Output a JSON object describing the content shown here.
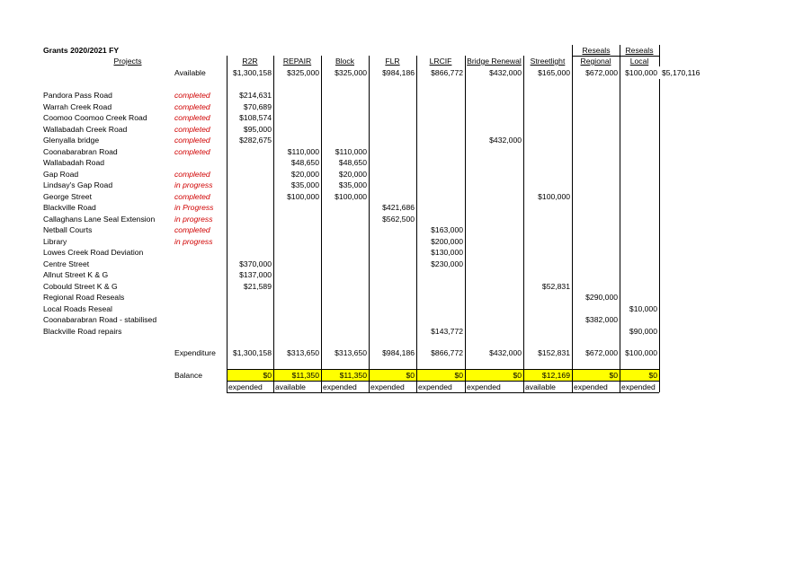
{
  "title": "Grants 2020/2021 FY",
  "headers": {
    "projects": "Projects",
    "reseals": "Reseals",
    "columns": [
      "R2R",
      "REPAIR",
      "Block",
      "FLR",
      "LRCIF",
      "Bridge Renewal",
      "Streetlight",
      "Regional",
      "Local"
    ]
  },
  "available": {
    "label": "Available",
    "values": [
      "$1,300,158",
      "$325,000",
      "$325,000",
      "$984,186",
      "$866,772",
      "$432,000",
      "$165,000",
      "$672,000",
      "$100,000"
    ],
    "total": "$5,170,116"
  },
  "projects": [
    {
      "name": "Pandora Pass Road",
      "status": "completed",
      "values": [
        "$214,631",
        "",
        "",
        "",
        "",
        "",
        "",
        "",
        ""
      ]
    },
    {
      "name": "Warrah Creek Road",
      "status": "completed",
      "values": [
        "$70,689",
        "",
        "",
        "",
        "",
        "",
        "",
        "",
        ""
      ]
    },
    {
      "name": "Coomoo Coomoo Creek Road",
      "status": "completed",
      "values": [
        "$108,574",
        "",
        "",
        "",
        "",
        "",
        "",
        "",
        ""
      ]
    },
    {
      "name": "Wallabadah Creek Road",
      "status": "completed",
      "values": [
        "$95,000",
        "",
        "",
        "",
        "",
        "",
        "",
        "",
        ""
      ]
    },
    {
      "name": "Glenyalla bridge",
      "status": "completed",
      "values": [
        "$282,675",
        "",
        "",
        "",
        "",
        "$432,000",
        "",
        "",
        ""
      ]
    },
    {
      "name": "Coonabarabran Road",
      "status": "completed",
      "values": [
        "",
        "$110,000",
        "$110,000",
        "",
        "",
        "",
        "",
        "",
        ""
      ]
    },
    {
      "name": "Wallabadah Road",
      "status": "",
      "values": [
        "",
        "$48,650",
        "$48,650",
        "",
        "",
        "",
        "",
        "",
        ""
      ]
    },
    {
      "name": "Gap Road",
      "status": "completed",
      "values": [
        "",
        "$20,000",
        "$20,000",
        "",
        "",
        "",
        "",
        "",
        ""
      ]
    },
    {
      "name": "Lindsay's Gap Road",
      "status": "in progress",
      "values": [
        "",
        "$35,000",
        "$35,000",
        "",
        "",
        "",
        "",
        "",
        ""
      ]
    },
    {
      "name": "George Street",
      "status": "completed",
      "values": [
        "",
        "$100,000",
        "$100,000",
        "",
        "",
        "",
        "$100,000",
        "",
        ""
      ]
    },
    {
      "name": "Blackville Road",
      "status": "in Progress",
      "values": [
        "",
        "",
        "",
        "$421,686",
        "",
        "",
        "",
        "",
        ""
      ]
    },
    {
      "name": "Callaghans Lane Seal Extension",
      "status": "in progress",
      "values": [
        "",
        "",
        "",
        "$562,500",
        "",
        "",
        "",
        "",
        ""
      ]
    },
    {
      "name": "Netball Courts",
      "status": "completed",
      "values": [
        "",
        "",
        "",
        "",
        "$163,000",
        "",
        "",
        "",
        ""
      ]
    },
    {
      "name": "Library",
      "status": "in progress",
      "values": [
        "",
        "",
        "",
        "",
        "$200,000",
        "",
        "",
        "",
        ""
      ]
    },
    {
      "name": "Lowes Creek Road Deviation",
      "status": "",
      "values": [
        "",
        "",
        "",
        "",
        "$130,000",
        "",
        "",
        "",
        ""
      ]
    },
    {
      "name": "Centre Street",
      "status": "",
      "values": [
        "$370,000",
        "",
        "",
        "",
        "$230,000",
        "",
        "",
        "",
        ""
      ]
    },
    {
      "name": "Allnut Street K & G",
      "status": "",
      "values": [
        "$137,000",
        "",
        "",
        "",
        "",
        "",
        "",
        "",
        ""
      ]
    },
    {
      "name": "Cobould Street K & G",
      "status": "",
      "values": [
        "$21,589",
        "",
        "",
        "",
        "",
        "",
        "$52,831",
        "",
        ""
      ]
    },
    {
      "name": "Regional Road Reseals",
      "status": "",
      "values": [
        "",
        "",
        "",
        "",
        "",
        "",
        "",
        "$290,000",
        ""
      ]
    },
    {
      "name": "Local Roads Reseal",
      "status": "",
      "values": [
        "",
        "",
        "",
        "",
        "",
        "",
        "",
        "",
        "$10,000"
      ]
    },
    {
      "name": "Coonabarabran Road - stabilised",
      "status": "",
      "values": [
        "",
        "",
        "",
        "",
        "",
        "",
        "",
        "$382,000",
        ""
      ]
    },
    {
      "name": "Blackville Road repairs",
      "status": "",
      "values": [
        "",
        "",
        "",
        "",
        "$143,772",
        "",
        "",
        "",
        "$90,000"
      ]
    }
  ],
  "expenditure": {
    "label": "Expenditure",
    "values": [
      "$1,300,158",
      "$313,650",
      "$313,650",
      "$984,186",
      "$866,772",
      "$432,000",
      "$152,831",
      "$672,000",
      "$100,000"
    ]
  },
  "balance": {
    "label": "Balance",
    "values": [
      "$0",
      "$11,350",
      "$11,350",
      "$0",
      "$0",
      "$0",
      "$12,169",
      "$0",
      "$0"
    ],
    "notes": [
      "expended",
      "available",
      "expended",
      "expended",
      "expended",
      "expended",
      "available",
      "expended",
      "expended"
    ]
  },
  "colors": {
    "status": "#d00000",
    "highlight": "#ffff00"
  }
}
